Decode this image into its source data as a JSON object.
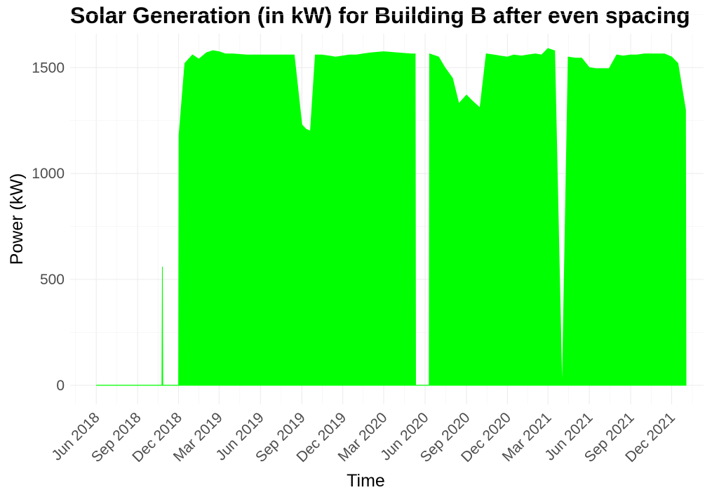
{
  "chart_data": {
    "type": "area",
    "title": "Solar Generation (in kW) for Building B after even spacing",
    "xlabel": "Time",
    "ylabel": "Power (kW)",
    "x_ticks": [
      "Jun 2018",
      "Sep 2018",
      "Dec 2018",
      "Mar 2019",
      "Jun 2019",
      "Sep 2019",
      "Dec 2019",
      "Mar 2020",
      "Jun 2020",
      "Sep 2020",
      "Dec 2020",
      "Mar 2021",
      "Jun 2021",
      "Sep 2021",
      "Dec 2021"
    ],
    "y_ticks": [
      0,
      500,
      1000,
      1500
    ],
    "ylim": [
      -90,
      1660
    ],
    "xlim": [
      "2018-04-04",
      "2022-02-10"
    ],
    "grid": true,
    "legend": "none",
    "series": [
      {
        "color": "#00ff00",
        "x": [
          "2018-06-01",
          "2018-09-01",
          "2018-10-25",
          "2018-10-26",
          "2018-10-27",
          "2018-12-01",
          "2018-12-02",
          "2018-12-15",
          "2019-01-01",
          "2019-01-15",
          "2019-02-01",
          "2019-02-15",
          "2019-03-01",
          "2019-03-15",
          "2019-04-01",
          "2019-05-01",
          "2019-06-01",
          "2019-07-01",
          "2019-08-01",
          "2019-08-15",
          "2019-09-01",
          "2019-09-10",
          "2019-09-20",
          "2019-10-01",
          "2019-10-15",
          "2019-11-01",
          "2019-11-15",
          "2019-12-01",
          "2019-12-15",
          "2020-01-01",
          "2020-01-15",
          "2020-02-01",
          "2020-03-01",
          "2020-04-01",
          "2020-05-01",
          "2020-05-10",
          "2020-05-11",
          "2020-06-10",
          "2020-06-11",
          "2020-07-01",
          "2020-07-15",
          "2020-08-01",
          "2020-08-15",
          "2020-09-01",
          "2020-09-15",
          "2020-10-01",
          "2020-10-15",
          "2020-11-01",
          "2020-11-15",
          "2020-12-01",
          "2020-12-15",
          "2021-01-01",
          "2021-01-15",
          "2021-02-01",
          "2021-02-15",
          "2021-03-01",
          "2021-03-15",
          "2021-03-16",
          "2021-04-01",
          "2021-04-02",
          "2021-04-15",
          "2021-05-01",
          "2021-05-15",
          "2021-06-01",
          "2021-06-15",
          "2021-07-01",
          "2021-07-15",
          "2021-08-01",
          "2021-08-15",
          "2021-09-01",
          "2021-09-15",
          "2021-10-01",
          "2021-10-15",
          "2021-11-01",
          "2021-11-15",
          "2021-12-01",
          "2021-12-15",
          "2022-01-01",
          "2022-01-02"
        ],
        "top": [
          0,
          0,
          0,
          560,
          0,
          0,
          1180,
          1520,
          1560,
          1540,
          1570,
          1580,
          1575,
          1565,
          1565,
          1560,
          1560,
          1560,
          1560,
          1560,
          1230,
          1210,
          1200,
          1560,
          1560,
          1555,
          1550,
          1555,
          1560,
          1560,
          1565,
          1570,
          1575,
          1570,
          1565,
          1565,
          0,
          0,
          1565,
          1550,
          1500,
          1450,
          1330,
          1370,
          1340,
          1310,
          1565,
          1560,
          1555,
          1550,
          1560,
          1555,
          1560,
          1565,
          1560,
          1590,
          1580,
          1580,
          0,
          0,
          1550,
          1545,
          1545,
          1500,
          1495,
          1495,
          1495,
          1560,
          1555,
          1560,
          1560,
          1565,
          1565,
          1565,
          1565,
          1550,
          1520,
          1300,
          0
        ]
      }
    ]
  }
}
